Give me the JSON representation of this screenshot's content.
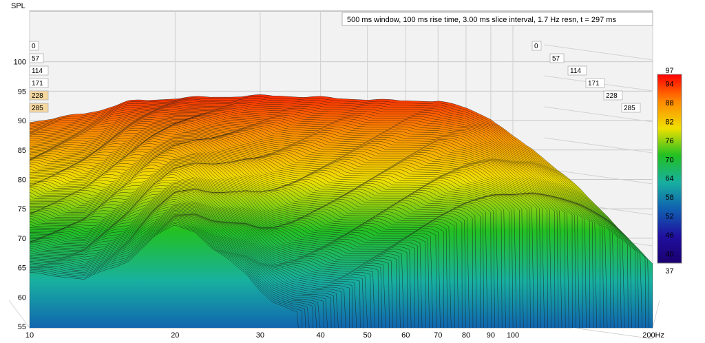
{
  "chart_data": {
    "type": "waterfall",
    "title": "500 ms window, 100 ms rise time, 3.00 ms slice interval, 1.7 Hz resn, t = 297 ms",
    "ylabel": "SPL",
    "xunit": "Hz",
    "x_scale": "log",
    "xlim": [
      10,
      200
    ],
    "ylim": [
      55,
      103
    ],
    "y_ticks": [
      55,
      60,
      65,
      70,
      75,
      80,
      85,
      90,
      95,
      100
    ],
    "x_ticks": [
      10,
      20,
      30,
      40,
      50,
      60,
      70,
      80,
      90,
      100,
      200
    ],
    "x_tick_labels": [
      "10",
      "20",
      "30",
      "40",
      "50",
      "60",
      "70",
      "80",
      "90",
      "100",
      "200Hz"
    ],
    "time_labels_ms": [
      "0",
      "57",
      "114",
      "171",
      "228",
      "285"
    ],
    "colorbar": {
      "ticks": [
        97,
        94,
        88,
        82,
        76,
        70,
        64,
        58,
        52,
        46,
        40,
        37
      ],
      "min": 37,
      "max": 97,
      "colors": [
        "#ff0000",
        "#ff8800",
        "#f0e000",
        "#22c022",
        "#18b0a0",
        "#1060b0",
        "#2010a0",
        "#1a0070"
      ]
    },
    "slices_shown": 100,
    "first_slice_response": {
      "freq_hz": [
        10,
        11,
        12,
        13,
        14,
        15,
        16,
        17,
        18,
        19,
        20,
        22,
        24,
        26,
        28,
        30,
        33,
        36,
        40,
        45,
        50,
        55,
        60,
        65,
        70,
        75,
        80,
        85,
        90,
        95,
        100,
        110,
        120,
        140,
        160,
        180,
        200
      ],
      "spl_db": [
        88.5,
        89.0,
        89.5,
        90.0,
        90.5,
        91.3,
        92.0,
        92.2,
        92.3,
        92.4,
        92.5,
        92.7,
        92.8,
        92.8,
        92.9,
        93.0,
        93.0,
        92.8,
        92.7,
        92.5,
        92.3,
        92.2,
        92.2,
        92.1,
        92.0,
        91.5,
        91.0,
        90.0,
        89.0,
        87.5,
        86.0,
        84.0,
        81.5,
        77.0,
        72.5,
        68.0,
        64.5
      ]
    },
    "last_slice_response": {
      "freq_hz": [
        10,
        13,
        16,
        18,
        20,
        22,
        24,
        26,
        28,
        30,
        32,
        35,
        40,
        45
      ],
      "spl_db": [
        64.0,
        63.0,
        66.0,
        70.0,
        72.2,
        71.0,
        68.0,
        66.0,
        64.0,
        61.0,
        59.0,
        57.5,
        56.5,
        56.0
      ]
    }
  }
}
